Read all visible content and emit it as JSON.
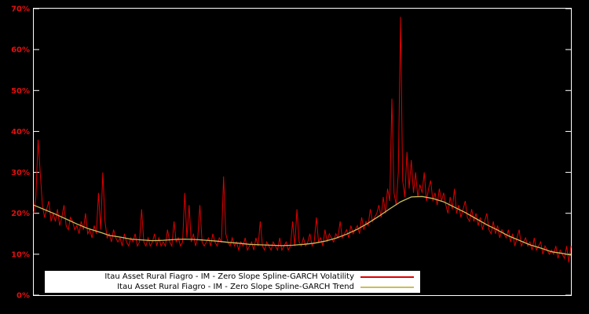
{
  "chart_data": {
    "type": "line",
    "title": "",
    "xlabel": "",
    "ylabel": "",
    "background": "#000000",
    "axis_color": "#ffffff",
    "tick_label_color": "#e01010",
    "grid": false,
    "ylim": [
      0,
      70
    ],
    "x_range": [
      0,
      249
    ],
    "ytick_labels": [
      "0%",
      "10%",
      "20%",
      "30%",
      "40%",
      "50%",
      "60%",
      "70%"
    ],
    "legend": {
      "position": "bottom-center",
      "bg": "#ffffff",
      "text_color": "#000000"
    },
    "series": [
      {
        "name": "Itau Asset Rural Fiagro - IM - Zero Slope Spline-GARCH Volatility",
        "color": "#dd0000",
        "values": [
          20,
          24,
          38,
          30,
          22,
          19,
          21,
          23,
          18,
          20,
          18,
          21,
          17,
          19,
          22,
          17,
          16,
          19,
          18,
          16,
          17,
          15,
          18,
          16,
          20,
          15,
          16,
          14,
          17,
          15,
          25,
          16,
          30,
          18,
          14,
          15,
          13,
          16,
          14,
          13,
          14,
          12,
          15,
          13,
          12,
          14,
          13,
          15,
          12,
          13,
          21,
          13,
          12,
          14,
          12,
          13,
          15,
          12,
          14,
          12,
          13,
          12,
          16,
          13,
          12,
          18,
          13,
          14,
          12,
          13,
          25,
          14,
          22,
          13,
          15,
          12,
          14,
          22,
          13,
          12,
          13,
          14,
          12,
          15,
          13,
          12,
          14,
          13,
          29,
          15,
          13,
          12,
          14,
          12,
          13,
          11,
          13,
          12,
          14,
          11,
          12,
          13,
          11,
          14,
          12,
          18,
          12,
          11,
          13,
          12,
          11,
          13,
          12,
          11,
          14,
          11,
          12,
          13,
          11,
          12,
          18,
          12,
          21,
          13,
          12,
          14,
          12,
          13,
          15,
          12,
          13,
          19,
          13,
          14,
          12,
          16,
          13,
          15,
          14,
          13,
          15,
          14,
          18,
          14,
          15,
          16,
          14,
          17,
          15,
          16,
          17,
          15,
          19,
          16,
          18,
          17,
          21,
          18,
          19,
          20,
          22,
          19,
          24,
          20,
          26,
          23,
          48,
          25,
          22,
          30,
          68,
          28,
          24,
          35,
          26,
          33,
          25,
          30,
          24,
          27,
          25,
          30,
          23,
          26,
          28,
          23,
          25,
          22,
          26,
          23,
          25,
          22,
          20,
          24,
          21,
          26,
          20,
          22,
          19,
          21,
          23,
          19,
          18,
          21,
          18,
          20,
          17,
          19,
          16,
          18,
          20,
          16,
          15,
          18,
          15,
          17,
          14,
          16,
          15,
          14,
          16,
          13,
          15,
          12,
          14,
          16,
          12,
          13,
          14,
          12,
          13,
          11,
          14,
          11,
          12,
          13,
          10,
          12,
          11,
          10,
          11,
          10,
          12,
          9,
          11,
          10,
          9,
          12,
          8,
          12
        ]
      },
      {
        "name": "Itau Asset Rural Fiagro - IM - Zero Slope Spline-GARCH Trend",
        "color": "#cdbd5a",
        "points": [
          [
            0,
            22
          ],
          [
            5,
            20.9
          ],
          [
            10,
            19.8
          ],
          [
            15,
            18.6
          ],
          [
            20,
            17.4
          ],
          [
            25,
            16.3
          ],
          [
            30,
            15.5
          ],
          [
            35,
            14.6
          ],
          [
            40,
            14.2
          ],
          [
            45,
            13.7
          ],
          [
            50,
            13.5
          ],
          [
            55,
            13.3
          ],
          [
            60,
            13.4
          ],
          [
            65,
            13.6
          ],
          [
            70,
            13.7
          ],
          [
            75,
            13.6
          ],
          [
            80,
            13.4
          ],
          [
            85,
            13.2
          ],
          [
            90,
            12.9
          ],
          [
            95,
            12.7
          ],
          [
            100,
            12.4
          ],
          [
            105,
            12.3
          ],
          [
            110,
            12.2
          ],
          [
            115,
            12.1
          ],
          [
            120,
            12.2
          ],
          [
            125,
            12.4
          ],
          [
            130,
            12.7
          ],
          [
            135,
            13.2
          ],
          [
            140,
            13.9
          ],
          [
            145,
            14.9
          ],
          [
            150,
            16.1
          ],
          [
            155,
            17.6
          ],
          [
            160,
            19.3
          ],
          [
            165,
            21.1
          ],
          [
            170,
            22.8
          ],
          [
            175,
            24.0
          ],
          [
            180,
            24.1
          ],
          [
            185,
            23.6
          ],
          [
            190,
            22.8
          ],
          [
            195,
            21.5
          ],
          [
            200,
            20.2
          ],
          [
            205,
            18.7
          ],
          [
            210,
            17.2
          ],
          [
            215,
            15.9
          ],
          [
            220,
            14.5
          ],
          [
            225,
            13.4
          ],
          [
            230,
            12.3
          ],
          [
            235,
            11.5
          ],
          [
            240,
            10.6
          ],
          [
            245,
            10.2
          ],
          [
            249,
            9.8
          ]
        ]
      }
    ]
  }
}
